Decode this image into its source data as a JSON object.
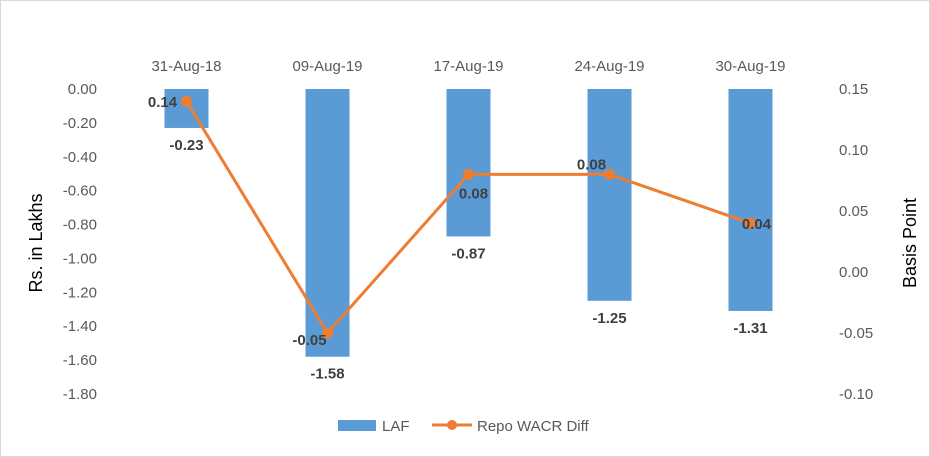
{
  "chart_data": {
    "type": "bar",
    "combo": "bar + line (secondary axis)",
    "categories": [
      "31-Aug-18",
      "09-Aug-19",
      "17-Aug-19",
      "24-Aug-19",
      "30-Aug-19"
    ],
    "category_axis_position": "top",
    "series": [
      {
        "name": "LAF",
        "type": "bar",
        "axis": "primary",
        "color": "#5b9bd5",
        "values": [
          -0.23,
          -1.58,
          -0.87,
          -1.25,
          -1.31
        ],
        "labels": [
          "-0.23",
          "-1.58",
          "-0.87",
          "-1.25",
          "-1.31"
        ]
      },
      {
        "name": "Repo WACR Diff",
        "type": "line",
        "axis": "secondary",
        "color": "#ed7d31",
        "marker": "circle",
        "values": [
          0.14,
          -0.05,
          0.08,
          0.08,
          0.04
        ],
        "labels": [
          "0.14",
          "-0.05",
          "0.08",
          "0.08",
          "0.04"
        ]
      }
    ],
    "ylabel": "Rs. in Lakhs",
    "y2label": "Basis Point",
    "ylim": [
      -1.8,
      0
    ],
    "y2lim": [
      -0.1,
      0.15
    ],
    "yticks": [
      "0.00",
      "-0.20",
      "-0.40",
      "-0.60",
      "-0.80",
      "-1.00",
      "-1.20",
      "-1.40",
      "-1.60",
      "-1.80"
    ],
    "y2ticks": [
      "0.15",
      "0.10",
      "0.05",
      "0.00",
      "-0.05",
      "-0.10"
    ],
    "grid": false,
    "legend": "bottom"
  }
}
